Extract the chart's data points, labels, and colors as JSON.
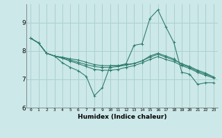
{
  "xlabel": "Humidex (Indice chaleur)",
  "bg_color": "#cce8e8",
  "line_color": "#2e7d6e",
  "grid_color": "#aad0d0",
  "xlim": [
    -0.5,
    23.5
  ],
  "ylim": [
    6.0,
    9.65
  ],
  "yticks": [
    6,
    7,
    8,
    9
  ],
  "xticks": [
    0,
    1,
    2,
    3,
    4,
    5,
    6,
    7,
    8,
    9,
    10,
    11,
    12,
    13,
    14,
    15,
    16,
    17,
    18,
    19,
    20,
    21,
    22,
    23
  ],
  "series": [
    [
      8.45,
      8.28,
      7.92,
      7.82,
      7.58,
      7.42,
      7.3,
      7.1,
      6.42,
      6.7,
      7.48,
      7.48,
      7.55,
      8.2,
      8.25,
      9.15,
      9.45,
      8.85,
      8.3,
      7.25,
      7.18,
      6.82,
      6.88,
      6.88
    ],
    [
      8.45,
      8.28,
      7.92,
      7.82,
      7.78,
      7.72,
      7.68,
      7.6,
      7.52,
      7.48,
      7.48,
      7.48,
      7.52,
      7.56,
      7.65,
      7.82,
      7.92,
      7.82,
      7.72,
      7.52,
      7.42,
      7.28,
      7.18,
      7.08
    ],
    [
      8.45,
      8.28,
      7.92,
      7.82,
      7.76,
      7.68,
      7.6,
      7.52,
      7.45,
      7.42,
      7.42,
      7.45,
      7.5,
      7.55,
      7.65,
      7.78,
      7.88,
      7.78,
      7.68,
      7.55,
      7.45,
      7.32,
      7.22,
      7.08
    ],
    [
      8.45,
      8.28,
      7.92,
      7.82,
      7.74,
      7.64,
      7.55,
      7.45,
      7.35,
      7.32,
      7.32,
      7.35,
      7.42,
      7.48,
      7.58,
      7.7,
      7.8,
      7.7,
      7.62,
      7.48,
      7.38,
      7.24,
      7.14,
      7.04
    ]
  ]
}
